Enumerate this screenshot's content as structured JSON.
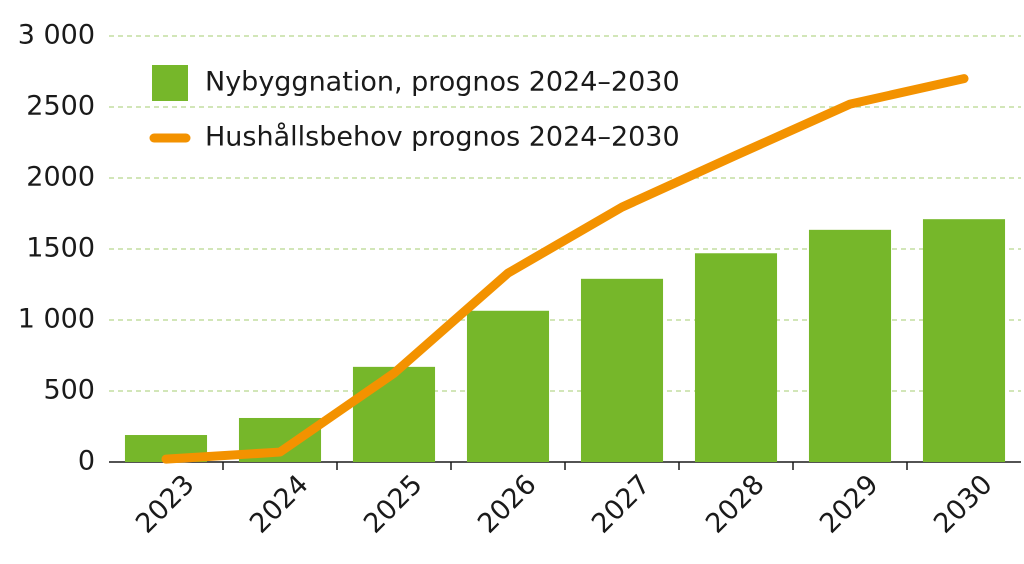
{
  "chart_data": {
    "type": "bar",
    "categories": [
      "2023",
      "2024",
      "2025",
      "2026",
      "2027",
      "2028",
      "2029",
      "2030"
    ],
    "series": [
      {
        "name": "Nybyggnation, prognos 2024–2030",
        "type": "bar",
        "color": "#76b72a",
        "values": [
          190,
          310,
          670,
          1065,
          1290,
          1470,
          1635,
          1710
        ]
      },
      {
        "name": "Hushållsbehov prognos 2024–2030",
        "type": "line",
        "color": "#f39200",
        "values": [
          20,
          70,
          625,
          1330,
          1795,
          2160,
          2520,
          2700
        ]
      }
    ],
    "ylim": [
      0,
      3000
    ],
    "yticks": [
      0,
      500,
      {
        "value": 1000,
        "label": "1 000"
      },
      1500,
      2000,
      2500,
      {
        "value": 3000,
        "label": "3 000"
      }
    ],
    "grid": true,
    "legend": "top-left"
  }
}
